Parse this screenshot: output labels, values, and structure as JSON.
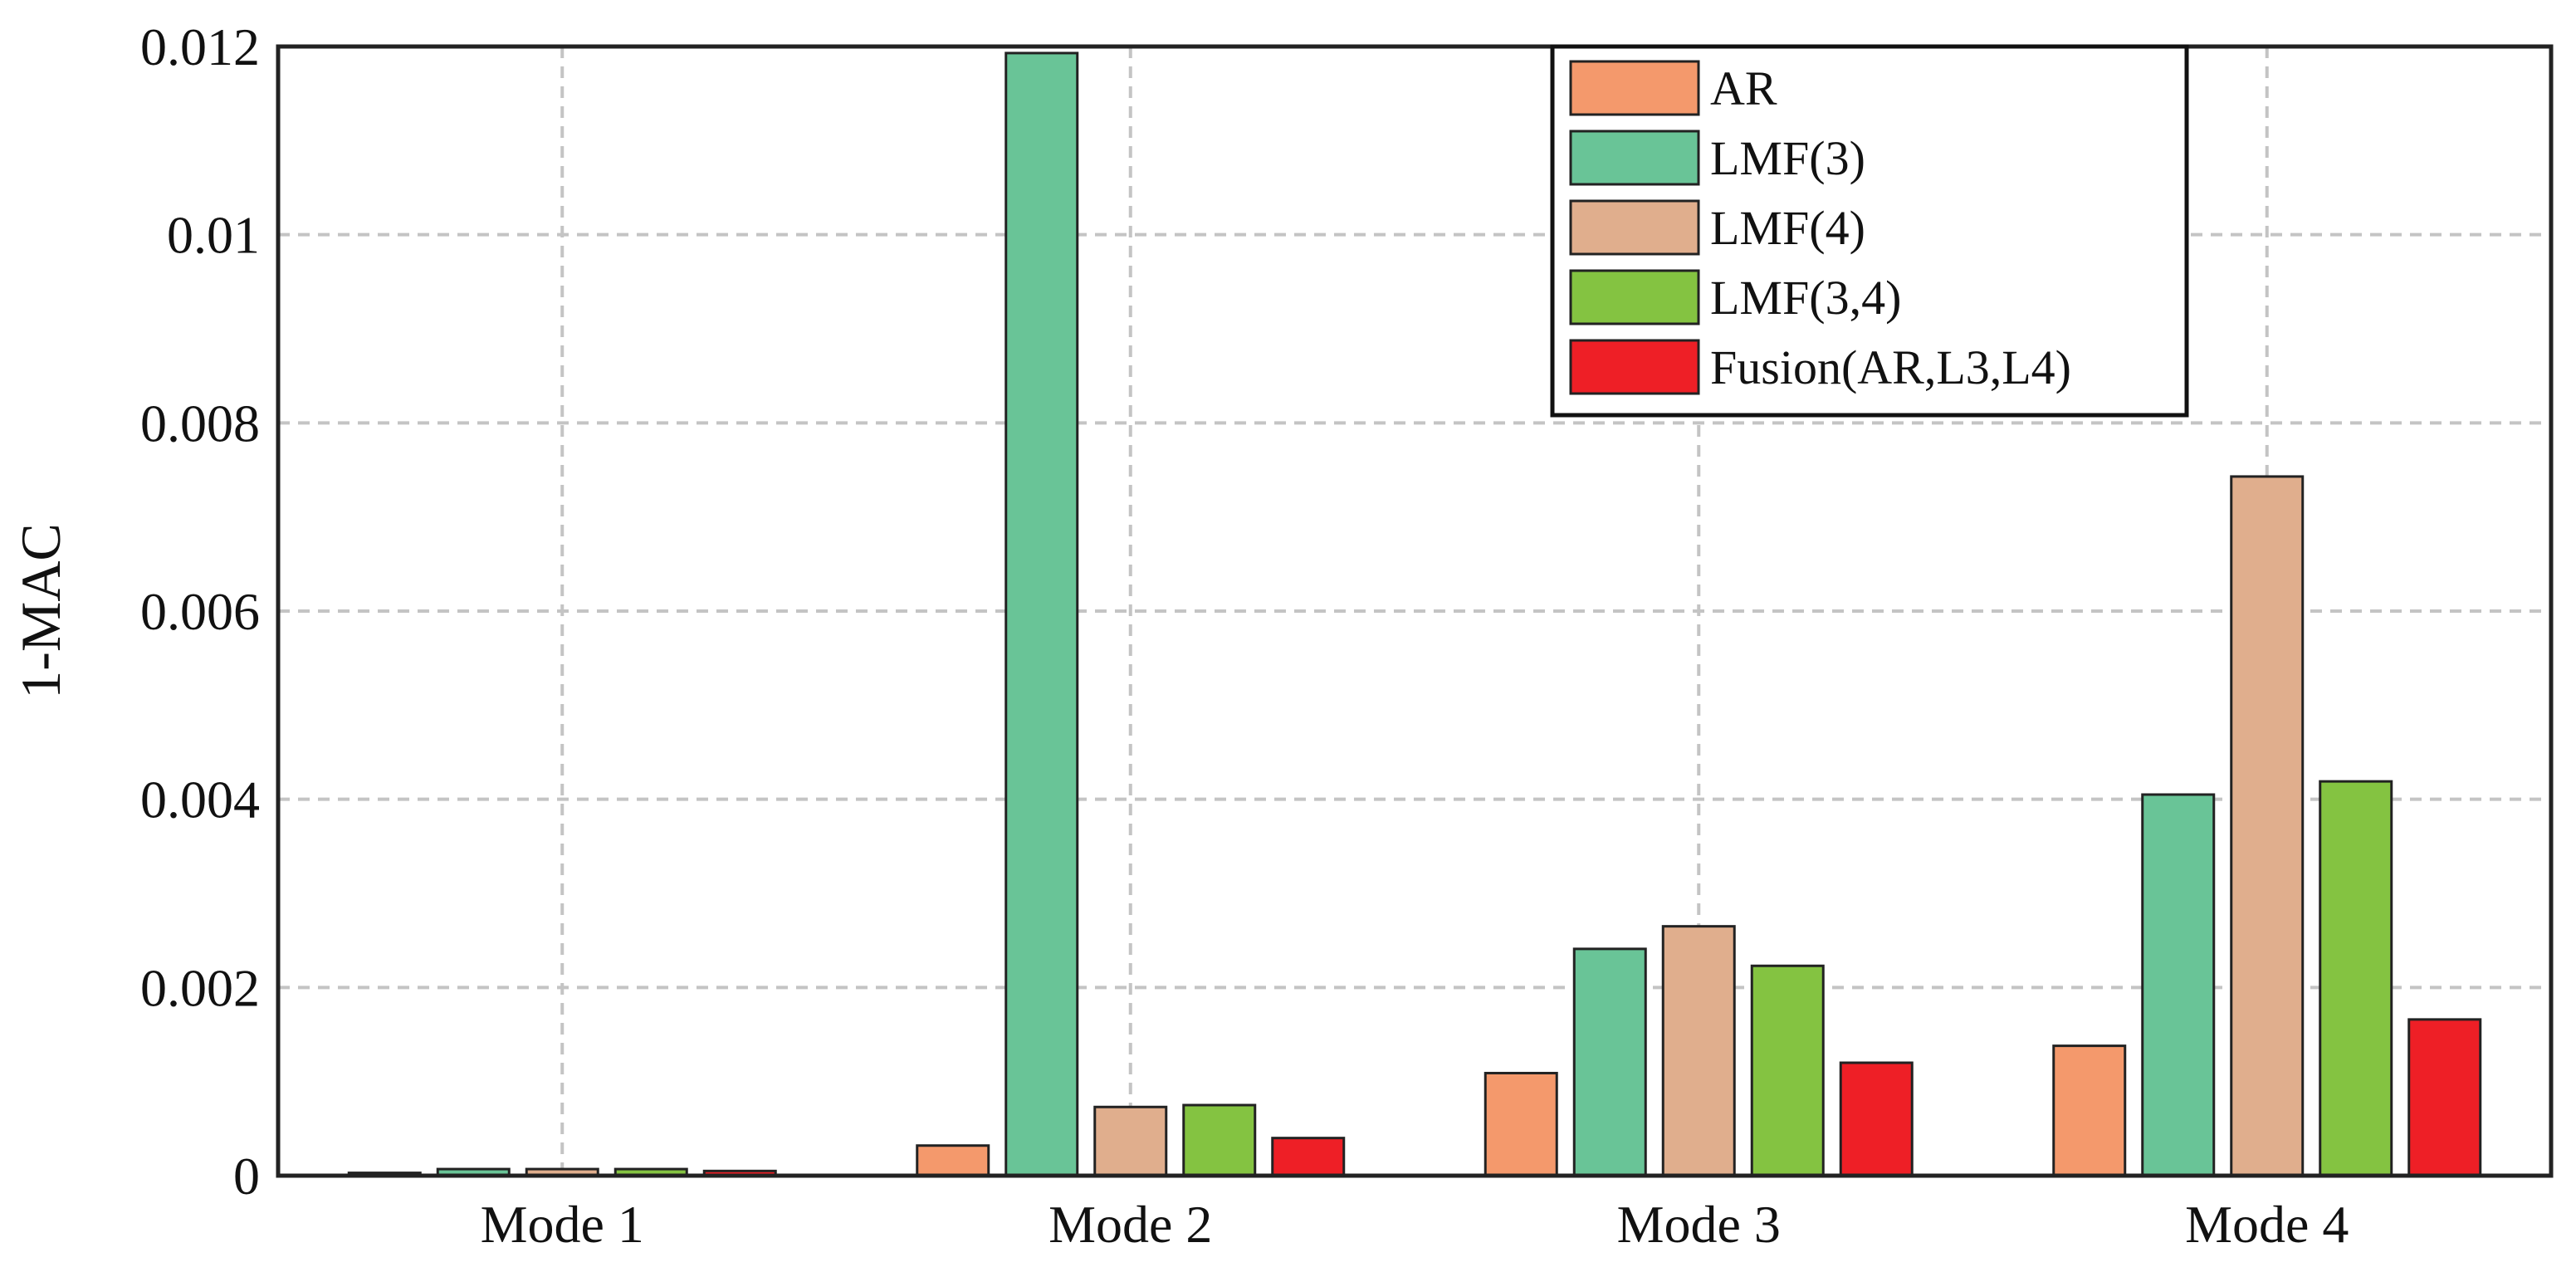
{
  "chart_data": {
    "type": "bar",
    "title": "",
    "xlabel": "",
    "ylabel": "1-MAC",
    "categories": [
      "Mode 1",
      "Mode 2",
      "Mode 3",
      "Mode 4"
    ],
    "ylim": [
      0,
      0.012
    ],
    "yticks": [
      "0",
      "0.002",
      "0.004",
      "0.006",
      "0.008",
      "0.01",
      "0.012"
    ],
    "grid": true,
    "legend_position": "top-right",
    "series": [
      {
        "name": "AR",
        "color": "#F4996C",
        "values": [
          3e-05,
          0.00032,
          0.00109,
          0.00138
        ]
      },
      {
        "name": "LMF(3)",
        "color": "#69C497",
        "values": [
          7e-05,
          0.01193,
          0.00241,
          0.00405
        ]
      },
      {
        "name": "LMF(4)",
        "color": "#E0AE8D",
        "values": [
          7e-05,
          0.00073,
          0.00265,
          0.00743
        ]
      },
      {
        "name": "LMF(3,4)",
        "color": "#84C341",
        "values": [
          7e-05,
          0.00075,
          0.00223,
          0.00419
        ]
      },
      {
        "name": "Fusion(AR,L3,L4)",
        "color": "#EE1F26",
        "values": [
          5e-05,
          0.0004,
          0.0012,
          0.00166
        ]
      }
    ]
  }
}
